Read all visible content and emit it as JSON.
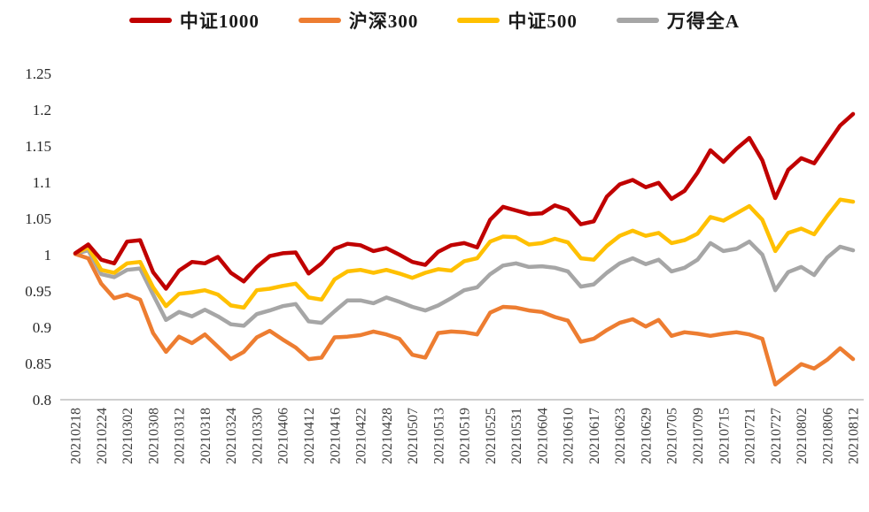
{
  "chart_data": {
    "type": "line",
    "title": "",
    "legend_position": "top",
    "grid": false,
    "background": "#ffffff",
    "axis_color": "#bfbfbf",
    "ytick_label_color": "#262626",
    "xtick_label_color": "#3f3f3f",
    "ylim": [
      0.8,
      1.25
    ],
    "yticks": [
      "1.25",
      "1.2",
      "1.15",
      "1.1",
      "1.05",
      "1",
      "0.95",
      "0.9",
      "0.85",
      "0.8"
    ],
    "x_tick_labels": [
      "20210218",
      "20210224",
      "20210302",
      "20210308",
      "20210312",
      "20210318",
      "20210324",
      "20210330",
      "20210406",
      "20210412",
      "20210416",
      "20210422",
      "20210428",
      "20210507",
      "20210513",
      "20210519",
      "20210525",
      "20210531",
      "20210604",
      "20210610",
      "20210617",
      "20210623",
      "20210629",
      "20210705",
      "20210709",
      "20210715",
      "20210721",
      "20210727",
      "20210802",
      "20210806",
      "20210812"
    ],
    "x_points_per_tick": 2,
    "series": [
      {
        "name": "中证1000",
        "color": "#c00000",
        "values": [
          1.002,
          1.014,
          0.993,
          0.988,
          1.018,
          1.02,
          0.976,
          0.953,
          0.978,
          0.99,
          0.988,
          0.997,
          0.975,
          0.963,
          0.983,
          0.998,
          1.002,
          1.003,
          0.974,
          0.988,
          1.008,
          1.015,
          1.013,
          1.005,
          1.009,
          1.0,
          0.99,
          0.986,
          1.004,
          1.013,
          1.016,
          1.01,
          1.048,
          1.066,
          1.061,
          1.056,
          1.057,
          1.068,
          1.062,
          1.042,
          1.046,
          1.08,
          1.097,
          1.103,
          1.093,
          1.099,
          1.077,
          1.088,
          1.113,
          1.144,
          1.128,
          1.146,
          1.161,
          1.13,
          1.078,
          1.117,
          1.133,
          1.126,
          1.152,
          1.178,
          1.194
        ]
      },
      {
        "name": "沪深300",
        "color": "#ed7d31",
        "values": [
          1.001,
          0.995,
          0.96,
          0.94,
          0.945,
          0.938,
          0.892,
          0.866,
          0.887,
          0.878,
          0.89,
          0.873,
          0.856,
          0.866,
          0.886,
          0.895,
          0.883,
          0.872,
          0.856,
          0.858,
          0.886,
          0.887,
          0.889,
          0.894,
          0.89,
          0.884,
          0.862,
          0.858,
          0.892,
          0.894,
          0.893,
          0.89,
          0.92,
          0.928,
          0.927,
          0.923,
          0.921,
          0.914,
          0.909,
          0.88,
          0.884,
          0.896,
          0.906,
          0.911,
          0.901,
          0.91,
          0.888,
          0.893,
          0.891,
          0.888,
          0.891,
          0.893,
          0.89,
          0.884,
          0.821,
          0.835,
          0.849,
          0.843,
          0.855,
          0.871,
          0.856
        ]
      },
      {
        "name": "中证500",
        "color": "#ffc000",
        "values": [
          1.002,
          1.01,
          0.979,
          0.975,
          0.988,
          0.99,
          0.955,
          0.929,
          0.946,
          0.948,
          0.951,
          0.945,
          0.93,
          0.927,
          0.951,
          0.953,
          0.957,
          0.96,
          0.941,
          0.938,
          0.966,
          0.977,
          0.979,
          0.975,
          0.979,
          0.974,
          0.968,
          0.975,
          0.98,
          0.978,
          0.991,
          0.995,
          1.018,
          1.025,
          1.024,
          1.014,
          1.016,
          1.022,
          1.017,
          0.995,
          0.993,
          1.012,
          1.026,
          1.033,
          1.026,
          1.03,
          1.016,
          1.02,
          1.029,
          1.052,
          1.047,
          1.057,
          1.067,
          1.048,
          1.005,
          1.03,
          1.036,
          1.028,
          1.053,
          1.076,
          1.073
        ]
      },
      {
        "name": "万得全A",
        "color": "#a6a6a6",
        "values": [
          1.001,
          1.006,
          0.973,
          0.969,
          0.979,
          0.981,
          0.945,
          0.91,
          0.921,
          0.915,
          0.924,
          0.915,
          0.904,
          0.902,
          0.918,
          0.923,
          0.929,
          0.932,
          0.908,
          0.906,
          0.922,
          0.937,
          0.937,
          0.933,
          0.941,
          0.935,
          0.928,
          0.923,
          0.93,
          0.94,
          0.951,
          0.955,
          0.973,
          0.985,
          0.988,
          0.983,
          0.984,
          0.982,
          0.977,
          0.956,
          0.959,
          0.975,
          0.988,
          0.995,
          0.987,
          0.993,
          0.977,
          0.982,
          0.993,
          1.016,
          1.005,
          1.008,
          1.018,
          1.0,
          0.951,
          0.976,
          0.983,
          0.972,
          0.996,
          1.011,
          1.006
        ]
      }
    ]
  }
}
